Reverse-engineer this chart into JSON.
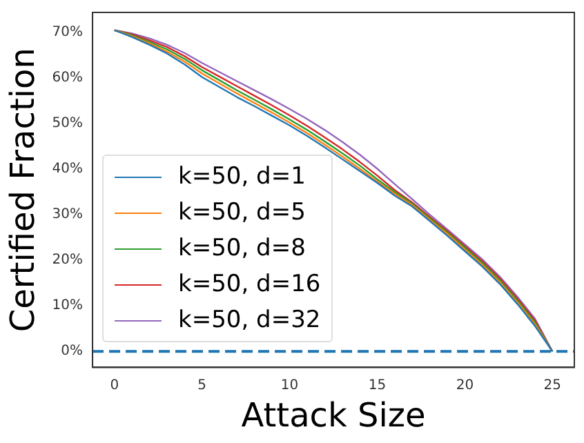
{
  "chart_data": {
    "type": "line",
    "xlabel": "Attack Size",
    "ylabel": "Certified Fraction",
    "x": [
      0,
      1,
      2,
      3,
      4,
      5,
      6,
      7,
      8,
      9,
      10,
      11,
      12,
      13,
      14,
      15,
      16,
      17,
      18,
      19,
      20,
      21,
      22,
      23,
      24,
      25
    ],
    "series": [
      {
        "name": "k=50, d=1",
        "color": "#1f77b4",
        "values": [
          70.5,
          69,
          67.3,
          65.4,
          63,
          60.2,
          58,
          55.8,
          53.8,
          51.7,
          49.6,
          47.3,
          44.8,
          42.2,
          39.6,
          37,
          34.2,
          31.8,
          28.6,
          25.4,
          22,
          18.6,
          14.8,
          10.4,
          5.6,
          0
        ]
      },
      {
        "name": "k=50, d=5",
        "color": "#ff7f0e",
        "values": [
          70.5,
          69.2,
          67.6,
          65.8,
          63.6,
          61,
          58.8,
          56.6,
          54.5,
          52.4,
          50.2,
          47.9,
          45.4,
          42.8,
          40.1,
          37.3,
          34.6,
          32.1,
          28.9,
          25.8,
          22.4,
          19,
          15.2,
          10.8,
          6,
          0
        ]
      },
      {
        "name": "k=50, d=8",
        "color": "#2ca02c",
        "values": [
          70.5,
          69.4,
          67.9,
          66.3,
          64.2,
          61.7,
          59.5,
          57.3,
          55.2,
          53.1,
          50.9,
          48.6,
          46.1,
          43.5,
          40.8,
          37.8,
          35,
          32.4,
          29.2,
          26.1,
          22.8,
          19.4,
          15.6,
          11.2,
          6.4,
          0
        ]
      },
      {
        "name": "k=50, d=16",
        "color": "#d62728",
        "values": [
          70.5,
          69.6,
          68.3,
          66.8,
          64.8,
          62.4,
          60.3,
          58.2,
          56.1,
          54,
          51.8,
          49.5,
          47,
          44.4,
          41.6,
          38.6,
          35.4,
          32.7,
          29.5,
          26.4,
          23.1,
          19.8,
          16,
          11.6,
          6.8,
          0
        ]
      },
      {
        "name": "k=50, d=32",
        "color": "#9467bd",
        "values": [
          70.5,
          69.8,
          68.7,
          67.3,
          65.5,
          63.3,
          61.3,
          59.3,
          57.3,
          55.3,
          53.2,
          51,
          48.6,
          46,
          43.2,
          40.1,
          36.7,
          33.4,
          30,
          26.8,
          23.5,
          20.2,
          16.4,
          12,
          7.2,
          0
        ]
      }
    ],
    "xlim": [
      -1.25,
      26.25
    ],
    "xticks": [
      0,
      5,
      10,
      15,
      20,
      25
    ],
    "ylim": [
      -3.5,
      74.4
    ],
    "yticks": [
      {
        "value": 0,
        "label": "0%"
      },
      {
        "value": 10,
        "label": "10%"
      },
      {
        "value": 20,
        "label": "20%"
      },
      {
        "value": 30,
        "label": "30%"
      },
      {
        "value": 40,
        "label": "40%"
      },
      {
        "value": 50,
        "label": "50%"
      },
      {
        "value": 60,
        "label": "60%"
      },
      {
        "value": 70,
        "label": "70%"
      }
    ],
    "ref_lines": [
      {
        "axis": "y",
        "value": 0,
        "color": "#1f77b4",
        "line_style": "dashed"
      }
    ],
    "legend": "bottom left",
    "grid": false,
    "marker": "none",
    "line_style": "solid"
  }
}
